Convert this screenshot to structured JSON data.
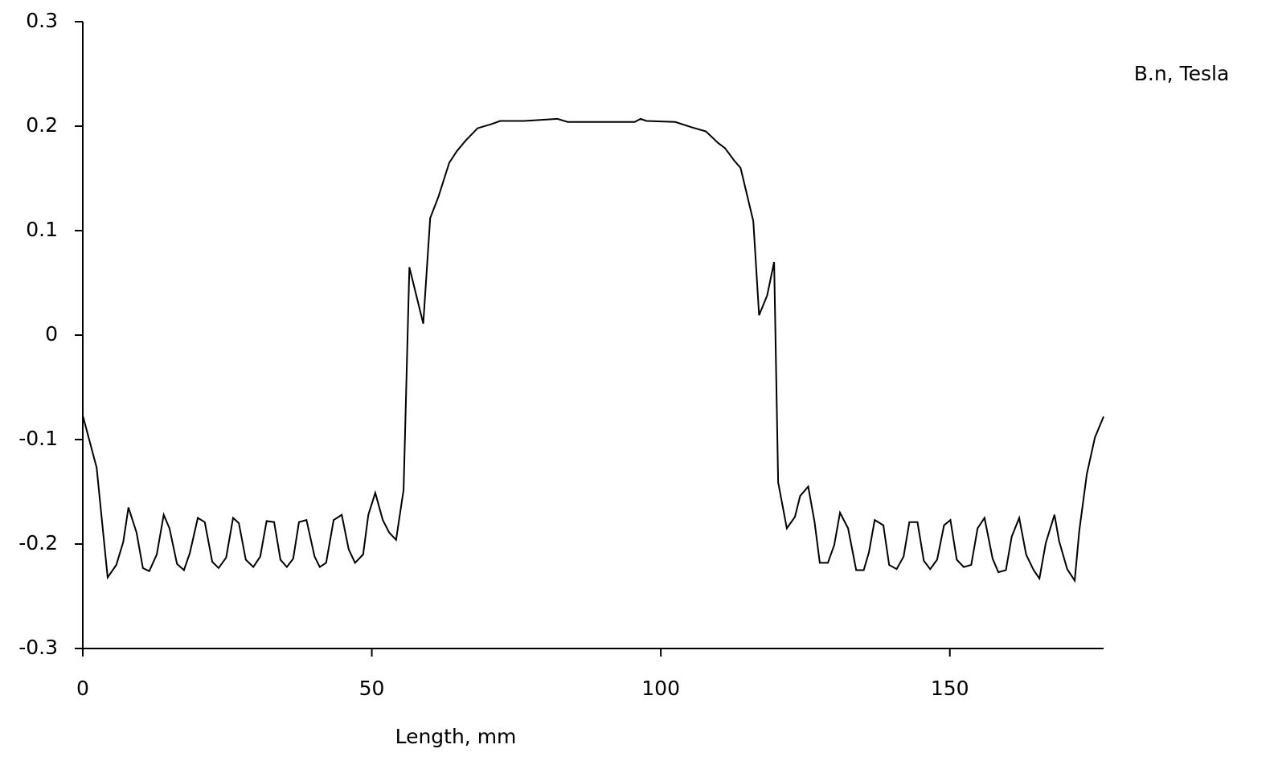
{
  "chart_data": {
    "type": "line",
    "x_label": "Length, mm",
    "y_label": "B.n, Tesla",
    "color": "#000000",
    "xlim": [
      0,
      176.6
    ],
    "xticks": [
      0,
      50,
      100,
      150
    ],
    "ylim": [
      -0.3,
      0.3
    ],
    "yticks": [
      0.3,
      0.2,
      0.1,
      0,
      -0.1,
      -0.2,
      -0.3
    ],
    "x": [
      0,
      2.4,
      4.3,
      5.8,
      7.0,
      7.9,
      9.3,
      10.4,
      11.5,
      12.8,
      14.0,
      15.0,
      16.3,
      17.5,
      18.5,
      19.9,
      21.1,
      22.4,
      23.5,
      24.8,
      26.0,
      27.0,
      28.2,
      29.5,
      30.7,
      31.8,
      33.1,
      34.2,
      35.3,
      36.4,
      37.4,
      38.7,
      40.1,
      41.0,
      42.1,
      43.4,
      44.8,
      46.0,
      47.1,
      48.5,
      49.4,
      50.6,
      51.9,
      53.0,
      54.2,
      55.5,
      56.5,
      57.7,
      58.9,
      60.1,
      61.5,
      63.4,
      64.7,
      66.2,
      68.3,
      70.7,
      72.2,
      76.4,
      82.1,
      83.9,
      95.5,
      96.5,
      97.5,
      102.5,
      105.3,
      107.8,
      109.9,
      111.1,
      112.7,
      113.8,
      116.0,
      117.0,
      118.4,
      119.6,
      120.3,
      121.8,
      123.2,
      124.1,
      125.5,
      126.6,
      127.5,
      128.9,
      130.0,
      131.0,
      132.4,
      133.8,
      135.1,
      136.0,
      137.0,
      138.5,
      139.5,
      140.8,
      142.0,
      143.0,
      144.4,
      145.5,
      146.6,
      147.8,
      149.0,
      150.1,
      151.2,
      152.4,
      153.7,
      154.8,
      156.0,
      157.4,
      158.4,
      159.7,
      160.7,
      162.0,
      163.2,
      164.5,
      165.5,
      166.6,
      168.1,
      168.9,
      170.3,
      171.6,
      172.4,
      173.7,
      175.1,
      176.6
    ],
    "values": [
      -0.077,
      -0.127,
      -0.232,
      -0.22,
      -0.198,
      -0.165,
      -0.189,
      -0.223,
      -0.226,
      -0.21,
      -0.172,
      -0.185,
      -0.219,
      -0.225,
      -0.209,
      -0.175,
      -0.179,
      -0.217,
      -0.223,
      -0.213,
      -0.175,
      -0.18,
      -0.215,
      -0.222,
      -0.212,
      -0.178,
      -0.179,
      -0.215,
      -0.222,
      -0.214,
      -0.179,
      -0.177,
      -0.212,
      -0.222,
      -0.218,
      -0.177,
      -0.172,
      -0.205,
      -0.218,
      -0.21,
      -0.172,
      -0.151,
      -0.177,
      -0.189,
      -0.196,
      -0.148,
      0.065,
      0.038,
      0.011,
      0.112,
      0.132,
      0.165,
      0.176,
      0.186,
      0.198,
      0.202,
      0.205,
      0.205,
      0.207,
      0.204,
      0.204,
      0.207,
      0.205,
      0.204,
      0.199,
      0.195,
      0.184,
      0.179,
      0.167,
      0.16,
      0.109,
      0.019,
      0.038,
      0.07,
      -0.141,
      -0.185,
      -0.174,
      -0.154,
      -0.145,
      -0.179,
      -0.218,
      -0.218,
      -0.201,
      -0.17,
      -0.185,
      -0.225,
      -0.225,
      -0.208,
      -0.177,
      -0.182,
      -0.22,
      -0.224,
      -0.212,
      -0.179,
      -0.179,
      -0.216,
      -0.224,
      -0.215,
      -0.182,
      -0.177,
      -0.215,
      -0.222,
      -0.22,
      -0.185,
      -0.175,
      -0.214,
      -0.227,
      -0.225,
      -0.193,
      -0.175,
      -0.21,
      -0.225,
      -0.233,
      -0.199,
      -0.172,
      -0.197,
      -0.224,
      -0.235,
      -0.187,
      -0.133,
      -0.098,
      -0.078
    ]
  }
}
